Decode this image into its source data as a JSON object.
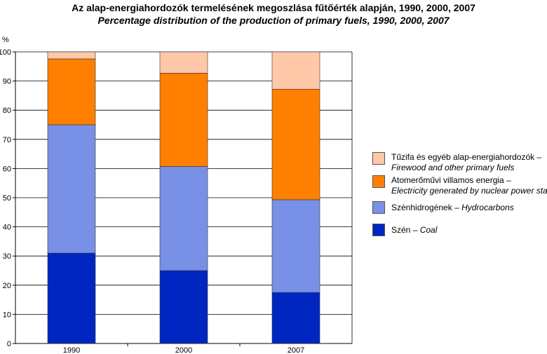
{
  "chart_data": {
    "type": "bar",
    "stacked": true,
    "title": "Az alap-energiahordozók termelésének megoszlása fűtőérték alapján, 1990, 2000, 2007",
    "subtitle": "Percentage distribution of the production of primary fuels, 1990, 2000, 2007",
    "ylabel": "%",
    "ylim": [
      0,
      100
    ],
    "yticks": [
      "0",
      "10",
      "20",
      "30",
      "40",
      "50",
      "60",
      "70",
      "80",
      "90",
      "100"
    ],
    "grid": true,
    "legend_position": "right",
    "categories": [
      "1990",
      "2000",
      "2007"
    ],
    "series": [
      {
        "name_hu": "Szén",
        "name_en": "Coal",
        "color": "#0026c2",
        "values": [
          31,
          25,
          17.5
        ]
      },
      {
        "name_hu": "Szénhidrogének",
        "name_en": "Hydrocarbons",
        "color": "#7890e6",
        "values": [
          44,
          35.7,
          31.8
        ]
      },
      {
        "name_hu": "Atomerőművi villamos energia",
        "name_en": "Electricity generated by nuclear power station",
        "color": "#ff8000",
        "values": [
          22.6,
          32,
          37.9
        ]
      },
      {
        "name_hu": "Tűzifa és egyéb alap-energiahordozók",
        "name_en": "Firewood and other primary fuels",
        "color": "#ffc8a8",
        "values": [
          2.4,
          7.3,
          12.8
        ]
      }
    ]
  }
}
